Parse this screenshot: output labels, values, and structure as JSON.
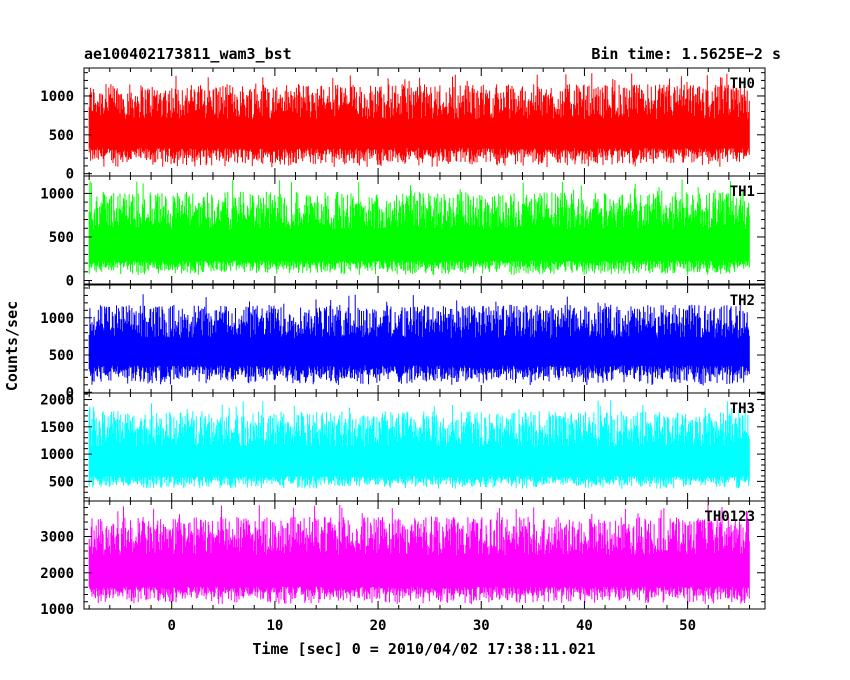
{
  "header": {
    "title": "ae100402173811_wam3_bst",
    "bin_time": "Bin time: 1.5625E−2 s"
  },
  "chart_data": {
    "type": "line",
    "xlabel": "Time [sec] 0 = 2010/04/02 17:38:11.021",
    "ylabel": "Counts/sec",
    "xlim": [
      -8.5,
      57.5
    ],
    "x_ticks": [
      0,
      10,
      20,
      30,
      40,
      50
    ],
    "x_range": [
      -8,
      56
    ],
    "grid": false,
    "panels": [
      {
        "name": "TH0",
        "color": "#ff0000",
        "ylim": [
          -30,
          1360
        ],
        "y_ticks": [
          0,
          500,
          1000
        ],
        "base": 330,
        "low": 80,
        "peak": 1300
      },
      {
        "name": "TH1",
        "color": "#00ff00",
        "ylim": [
          -40,
          1200
        ],
        "y_ticks": [
          0,
          500,
          1000
        ],
        "base": 230,
        "low": 60,
        "peak": 1160
      },
      {
        "name": "TH2",
        "color": "#0000ff",
        "ylim": [
          -10,
          1440
        ],
        "y_ticks": [
          0,
          500,
          1000
        ],
        "base": 360,
        "low": 90,
        "peak": 1320
      },
      {
        "name": "TH3",
        "color": "#00ffff",
        "ylim": [
          140,
          2120
        ],
        "y_ticks": [
          500,
          1000,
          1500,
          2000
        ],
        "base": 600,
        "low": 360,
        "peak": 2000
      },
      {
        "name": "TH0123",
        "color": "#ff00ff",
        "ylim": [
          1000,
          3980
        ],
        "y_ticks": [
          1000,
          2000,
          3000
        ],
        "base": 1620,
        "low": 1130,
        "peak": 3880
      }
    ]
  }
}
